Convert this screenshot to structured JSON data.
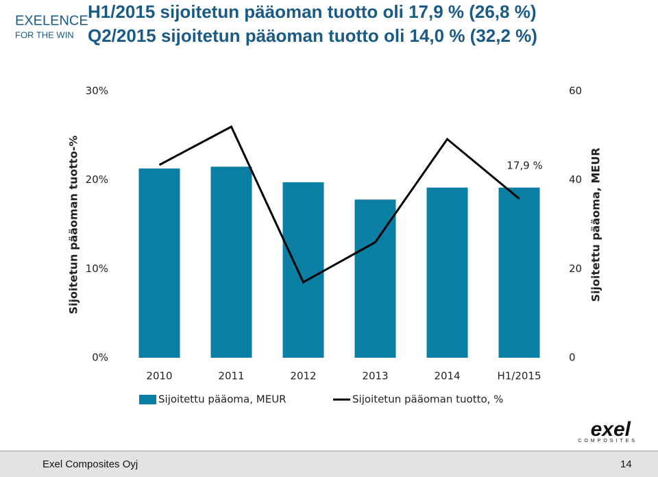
{
  "header": {
    "logo_line1": "EXELENCE",
    "logo_line2": "FOR THE WIN",
    "title_line1": "H1/2015 sijoitetun pääoman tuotto oli 17,9 % (26,8 %)",
    "title_line2": "Q2/2015 sijoitetun pääoman tuotto oli 14,0 % (32,2 %)"
  },
  "chart_data": {
    "type": "bar",
    "categories": [
      "2010",
      "2011",
      "2012",
      "2013",
      "2014",
      "H1/2015"
    ],
    "series": [
      {
        "name": "Sijoitettu pääoma, MEUR",
        "type": "bar",
        "axis": "y2",
        "color": "#0b7ea4",
        "values": [
          42.6,
          43.0,
          39.5,
          35.6,
          38.3,
          38.3
        ]
      },
      {
        "name": "Sijoitetun pääoman tuotto, %",
        "type": "line",
        "axis": "y",
        "color": "#000000",
        "values": [
          21.7,
          26.0,
          8.5,
          13.0,
          24.6,
          17.9
        ],
        "value_labels": [
          null,
          null,
          null,
          null,
          null,
          "17,9 %"
        ]
      }
    ],
    "y_label": "Sijoitetun pääoman tuotto-%",
    "y2_label": "Sijoitettu pääoma, MEUR",
    "ylim": [
      0,
      30
    ],
    "yticks": [
      {
        "value": 0,
        "label": "0%"
      },
      {
        "value": 10,
        "label": "10%"
      },
      {
        "value": 20,
        "label": "20%"
      },
      {
        "value": 30,
        "label": "30%"
      }
    ],
    "y2lim": [
      0,
      60
    ],
    "y2ticks": [
      0,
      20,
      40,
      60
    ],
    "legend": "bottom"
  },
  "brand": {
    "name": "exel",
    "tagline": "COMPOSITES"
  },
  "footer": {
    "company": "Exel Composites Oyj",
    "page": "14"
  }
}
